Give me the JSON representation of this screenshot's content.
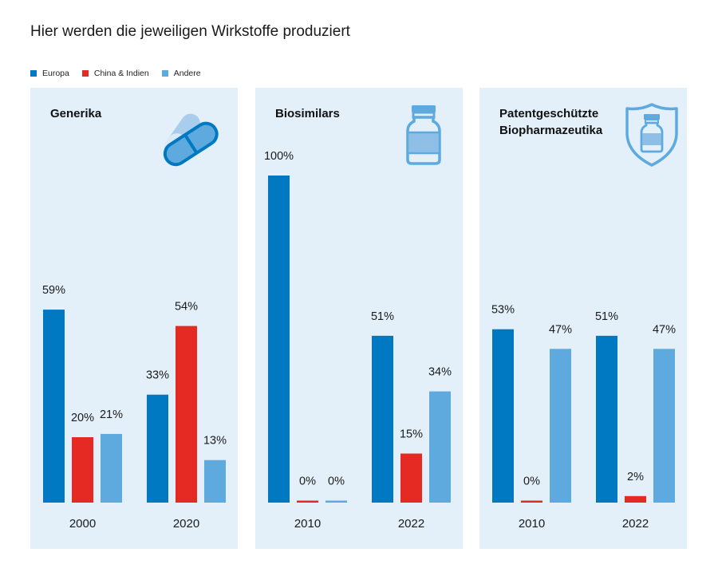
{
  "title": "Hier werden die jeweiligen Wirkstoffe produziert",
  "legend": [
    {
      "label": "Europa",
      "color": "#0079c2"
    },
    {
      "label": "China & Indien",
      "color": "#e52a24"
    },
    {
      "label": "Andere",
      "color": "#5eaade"
    }
  ],
  "chart_data": [
    {
      "type": "bar",
      "title": "Generika",
      "icon": "pill-icon",
      "categories": [
        "2000",
        "2020"
      ],
      "series": [
        {
          "name": "Europa",
          "values": [
            59,
            33
          ]
        },
        {
          "name": "China & Indien",
          "values": [
            20,
            54
          ]
        },
        {
          "name": "Andere",
          "values": [
            21,
            13
          ]
        }
      ],
      "labels": [
        [
          "59%",
          "20%",
          "21%"
        ],
        [
          "33%",
          "54%",
          "13%"
        ]
      ],
      "ylim": [
        0,
        100
      ],
      "unit": "%"
    },
    {
      "type": "bar",
      "title": "Biosimilars",
      "icon": "vial-icon",
      "categories": [
        "2010",
        "2022"
      ],
      "series": [
        {
          "name": "Europa",
          "values": [
            100,
            51
          ]
        },
        {
          "name": "China & Indien",
          "values": [
            0,
            15
          ]
        },
        {
          "name": "Andere",
          "values": [
            0,
            34
          ]
        }
      ],
      "labels": [
        [
          "100%",
          "0%",
          "0%"
        ],
        [
          "51%",
          "15%",
          "34%"
        ]
      ],
      "ylim": [
        0,
        100
      ],
      "unit": "%"
    },
    {
      "type": "bar",
      "title": "Patentgeschützte Biopharmazeutika",
      "title_lines": [
        "Patentgeschützte",
        "Biopharmazeutika"
      ],
      "icon": "shield-vial-icon",
      "categories": [
        "2010",
        "2022"
      ],
      "series": [
        {
          "name": "Europa",
          "values": [
            53,
            51
          ]
        },
        {
          "name": "China & Indien",
          "values": [
            0,
            2
          ]
        },
        {
          "name": "Andere",
          "values": [
            47,
            47
          ]
        }
      ],
      "labels": [
        [
          "53%",
          "0%",
          "47%"
        ],
        [
          "51%",
          "2%",
          "47%"
        ]
      ],
      "ylim": [
        0,
        100
      ],
      "unit": "%"
    }
  ]
}
